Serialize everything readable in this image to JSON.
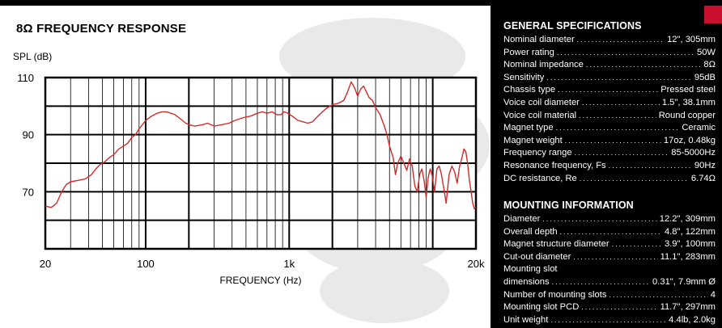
{
  "chart_data": {
    "type": "line",
    "title": "8Ω FREQUENCY RESPONSE",
    "ylabel": "SPL (dB)",
    "xlabel": "FREQUENCY (Hz)",
    "x_scale": "log",
    "xlim": [
      20,
      20000
    ],
    "ylim": [
      50,
      110
    ],
    "y_ticks": [
      110,
      90,
      70
    ],
    "x_ticks": [
      "20",
      "100",
      "1k",
      "20k"
    ],
    "x_tick_values": [
      20,
      100,
      1000,
      20000
    ],
    "grid": true,
    "series": [
      {
        "color": "#d42a2a",
        "points": [
          [
            20,
            65
          ],
          [
            22,
            64.5
          ],
          [
            24,
            66
          ],
          [
            26,
            70
          ],
          [
            28,
            72.5
          ],
          [
            30,
            73.5
          ],
          [
            34,
            74
          ],
          [
            38,
            74.5
          ],
          [
            42,
            76
          ],
          [
            45,
            78
          ],
          [
            48,
            79.5
          ],
          [
            52,
            80.5
          ],
          [
            56,
            82
          ],
          [
            60,
            83
          ],
          [
            65,
            85
          ],
          [
            70,
            86
          ],
          [
            75,
            87
          ],
          [
            80,
            89
          ],
          [
            85,
            90
          ],
          [
            90,
            92
          ],
          [
            95,
            93.5
          ],
          [
            100,
            95
          ],
          [
            110,
            96.5
          ],
          [
            120,
            97.5
          ],
          [
            130,
            98
          ],
          [
            140,
            98
          ],
          [
            150,
            97.5
          ],
          [
            160,
            97
          ],
          [
            170,
            96
          ],
          [
            180,
            95
          ],
          [
            190,
            94
          ],
          [
            200,
            93.5
          ],
          [
            220,
            93
          ],
          [
            250,
            93.5
          ],
          [
            270,
            94
          ],
          [
            300,
            93
          ],
          [
            340,
            93.5
          ],
          [
            380,
            94
          ],
          [
            420,
            95
          ],
          [
            480,
            96
          ],
          [
            540,
            96.5
          ],
          [
            600,
            97.5
          ],
          [
            650,
            98
          ],
          [
            700,
            97.5
          ],
          [
            760,
            98
          ],
          [
            820,
            97
          ],
          [
            880,
            97
          ],
          [
            920,
            98
          ],
          [
            980,
            97.5
          ],
          [
            1050,
            96.5
          ],
          [
            1150,
            95
          ],
          [
            1250,
            94.5
          ],
          [
            1350,
            94
          ],
          [
            1450,
            94.5
          ],
          [
            1550,
            96
          ],
          [
            1700,
            98
          ],
          [
            1850,
            99.5
          ],
          [
            2000,
            100.5
          ],
          [
            2200,
            101
          ],
          [
            2400,
            102
          ],
          [
            2550,
            105
          ],
          [
            2700,
            108.5
          ],
          [
            2850,
            106.5
          ],
          [
            3000,
            103.5
          ],
          [
            3150,
            106
          ],
          [
            3300,
            107
          ],
          [
            3450,
            105
          ],
          [
            3600,
            103
          ],
          [
            3800,
            102
          ],
          [
            4000,
            99.5
          ],
          [
            4300,
            97
          ],
          [
            4600,
            93
          ],
          [
            4800,
            90
          ],
          [
            5000,
            86
          ],
          [
            5300,
            82
          ],
          [
            5500,
            76
          ],
          [
            5700,
            80
          ],
          [
            6000,
            82.5
          ],
          [
            6300,
            80
          ],
          [
            6600,
            77.5
          ],
          [
            6900,
            81.5
          ],
          [
            7200,
            79
          ],
          [
            7500,
            72
          ],
          [
            7800,
            70
          ],
          [
            8100,
            76
          ],
          [
            8400,
            78
          ],
          [
            8700,
            74
          ],
          [
            9000,
            68
          ],
          [
            9300,
            75
          ],
          [
            9600,
            78
          ],
          [
            9900,
            76
          ],
          [
            10300,
            70
          ],
          [
            10700,
            78
          ],
          [
            11100,
            79
          ],
          [
            11500,
            76
          ],
          [
            12000,
            70.5
          ],
          [
            12400,
            66
          ],
          [
            13000,
            76
          ],
          [
            13600,
            79
          ],
          [
            14200,
            77
          ],
          [
            14800,
            73
          ],
          [
            15400,
            79
          ],
          [
            16000,
            82
          ],
          [
            16500,
            85
          ],
          [
            17000,
            84
          ],
          [
            17500,
            80
          ],
          [
            18000,
            74
          ],
          [
            18500,
            70
          ],
          [
            19000,
            66
          ],
          [
            19500,
            64
          ],
          [
            20000,
            64.5
          ]
        ]
      }
    ]
  },
  "specs": {
    "general": {
      "title": "GENERAL SPECIFICATIONS",
      "rows": [
        {
          "label": "Nominal diameter",
          "value": "12\", 305mm"
        },
        {
          "label": "Power rating",
          "value": "50W"
        },
        {
          "label": "Nominal impedance",
          "value": "8Ω"
        },
        {
          "label": "Sensitivity",
          "value": "95dB"
        },
        {
          "label": "Chassis type",
          "value": "Pressed steel"
        },
        {
          "label": "Voice coil diameter",
          "value": "1.5\", 38.1mm"
        },
        {
          "label": "Voice coil material",
          "value": "Round copper"
        },
        {
          "label": "Magnet type",
          "value": "Ceramic"
        },
        {
          "label": "Magnet weight",
          "value": "17oz, 0.48kg"
        },
        {
          "label": "Frequency range",
          "value": "85-5000Hz"
        },
        {
          "label": "Resonance frequency, Fs",
          "value": "90Hz"
        },
        {
          "label": "DC resistance, Re",
          "value": "6.74Ω"
        }
      ]
    },
    "mounting": {
      "title": "MOUNTING INFORMATION",
      "rows": [
        {
          "label": "Diameter",
          "value": "12.2\", 309mm"
        },
        {
          "label": "Overall depth",
          "value": "4.8\", 122mm"
        },
        {
          "label": "Magnet structure diameter",
          "value": "3.9\", 100mm"
        },
        {
          "label": "Cut-out diameter",
          "value": "11.1\", 283mm"
        },
        {
          "label": "Mounting slot",
          "value": ""
        },
        {
          "label": "dimensions",
          "value": "0.31\", 7.9mm Ø"
        },
        {
          "label": "Number of mounting slots",
          "value": "4"
        },
        {
          "label": "Mounting slot PCD",
          "value": "11.7\", 297mm"
        },
        {
          "label": "Unit weight",
          "value": "4.4lb, 2.0kg"
        }
      ]
    }
  }
}
